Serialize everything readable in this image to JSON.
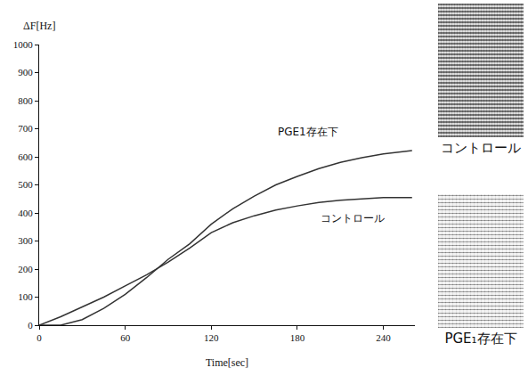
{
  "chart_data": {
    "type": "line",
    "x_title": "Time[sec]",
    "y_title": "ΔF[Hz]",
    "x": [
      0,
      15,
      30,
      45,
      60,
      75,
      90,
      105,
      120,
      135,
      150,
      165,
      180,
      195,
      210,
      225,
      240,
      255,
      260
    ],
    "series": [
      {
        "name": "PGE1存在下",
        "color": "#333333",
        "label_at": [
          165,
          690
        ],
        "values": [
          0,
          0,
          20,
          60,
          110,
          170,
          235,
          290,
          360,
          415,
          460,
          500,
          530,
          558,
          580,
          597,
          610,
          620,
          622
        ]
      },
      {
        "name": "コントロール",
        "color": "#333333",
        "label_at": [
          195,
          380
        ],
        "values": [
          0,
          30,
          65,
          100,
          140,
          180,
          225,
          275,
          330,
          365,
          390,
          410,
          425,
          437,
          445,
          450,
          455,
          455,
          455
        ]
      }
    ],
    "xlim": [
      0,
      262
    ],
    "xticks": [
      0,
      60,
      120,
      180,
      240
    ],
    "ylim": [
      0,
      1000
    ],
    "yticks": [
      0,
      100,
      200,
      300,
      400,
      500,
      600,
      700,
      800,
      900,
      1000
    ],
    "grid": false
  },
  "images": [
    {
      "caption": "コントロール"
    },
    {
      "caption": "PGE₁存在下"
    }
  ]
}
